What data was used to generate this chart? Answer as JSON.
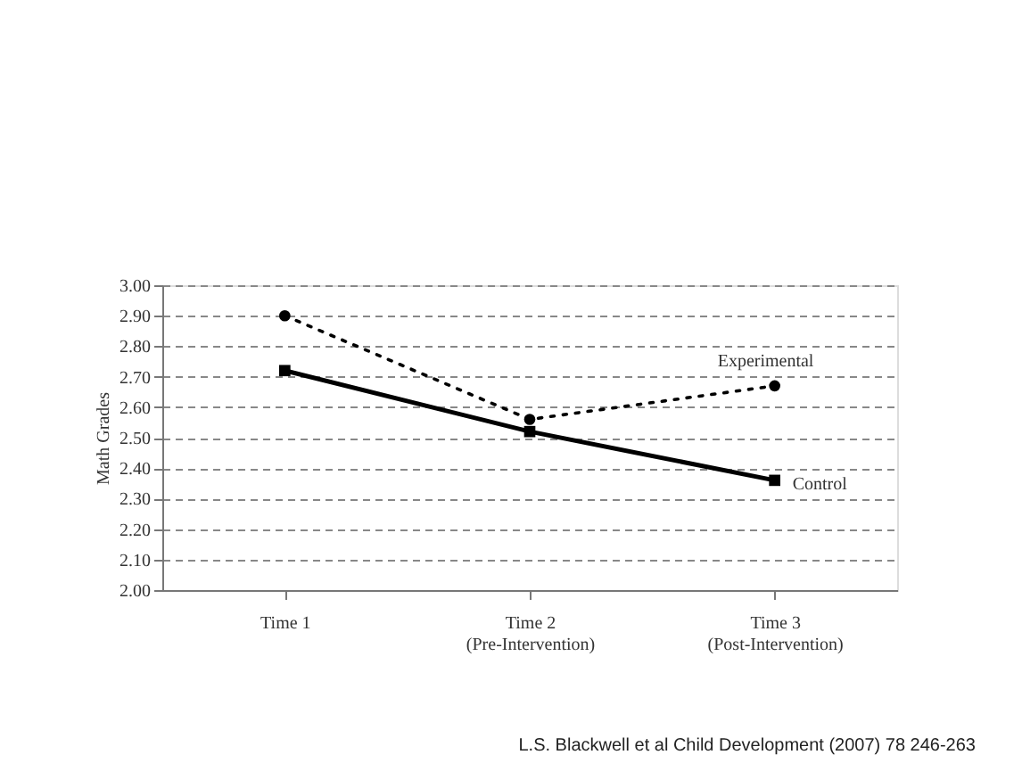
{
  "chart_data": {
    "type": "line",
    "ylabel": "Math Grades",
    "categories": [
      "Time 1",
      "Time 2\n(Pre-Intervention)",
      "Time 3\n(Post-Intervention)"
    ],
    "series": [
      {
        "name": "Experimental",
        "color": "#000000",
        "values": [
          2.9,
          2.56,
          2.67
        ],
        "marker": "circle",
        "line_style": "dotted"
      },
      {
        "name": "Control",
        "color": "#000000",
        "values": [
          2.72,
          2.52,
          2.36
        ],
        "marker": "square",
        "line_style": "solid"
      }
    ],
    "ylim": [
      2.0,
      3.0
    ],
    "yticks": [
      {
        "value": 2.0,
        "label": "2.00"
      },
      {
        "value": 2.1,
        "label": "2.10"
      },
      {
        "value": 2.2,
        "label": "2.20"
      },
      {
        "value": 2.3,
        "label": "2.30"
      },
      {
        "value": 2.4,
        "label": "2.40"
      },
      {
        "value": 2.5,
        "label": "2.50"
      },
      {
        "value": 2.6,
        "label": "2.60"
      },
      {
        "value": 2.7,
        "label": "2.70"
      },
      {
        "value": 2.8,
        "label": "2.80"
      },
      {
        "value": 2.9,
        "label": "2.90"
      },
      {
        "value": 3.0,
        "label": "3.00"
      }
    ],
    "grid": "y",
    "legend": false,
    "annotations": [
      "L.S. Blackwell et al Child Development (2007) 78 246-263"
    ]
  }
}
